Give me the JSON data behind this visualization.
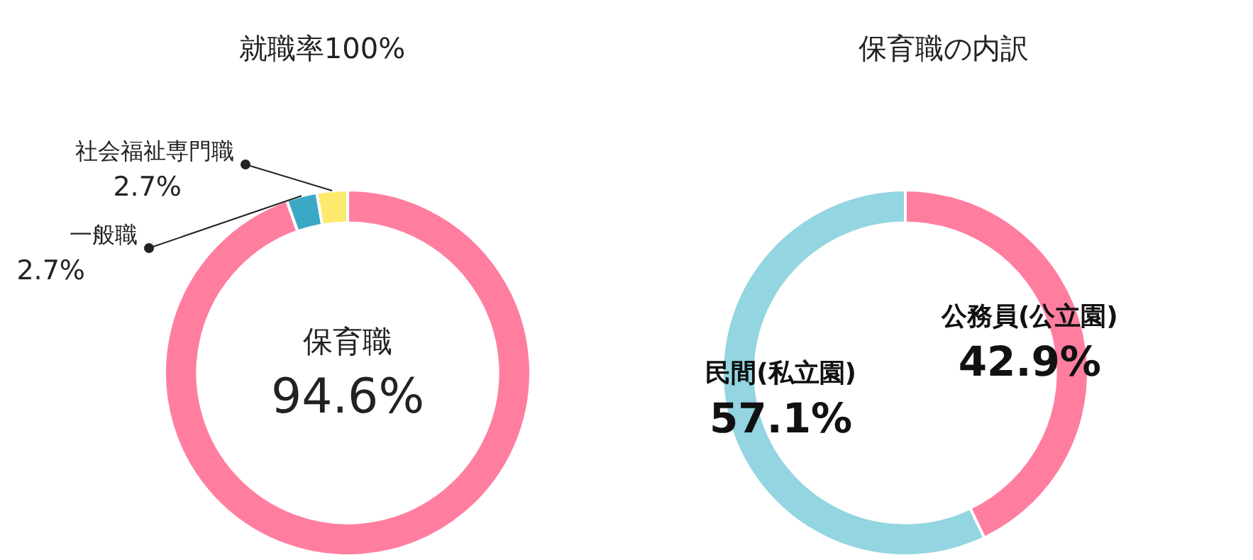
{
  "chart_data": [
    {
      "type": "donut",
      "title": "就職率100%",
      "categories": [
        "保育職",
        "一般職",
        "社会福祉専門職"
      ],
      "values": [
        94.6,
        2.7,
        2.7
      ],
      "colors": [
        "#ff7ea0",
        "#3ba9c6",
        "#fdea6c"
      ],
      "value_labels": [
        "94.6%",
        "2.7%",
        "2.7%"
      ],
      "legend": false
    },
    {
      "type": "donut",
      "title": "保育職の内訳",
      "categories": [
        "公務員(公立園)",
        "民間(私立園)"
      ],
      "values": [
        42.9,
        57.1
      ],
      "colors": [
        "#ff7ea0",
        "#93d5e0"
      ],
      "value_labels": [
        "42.9%",
        "57.1%"
      ],
      "legend": false
    }
  ]
}
